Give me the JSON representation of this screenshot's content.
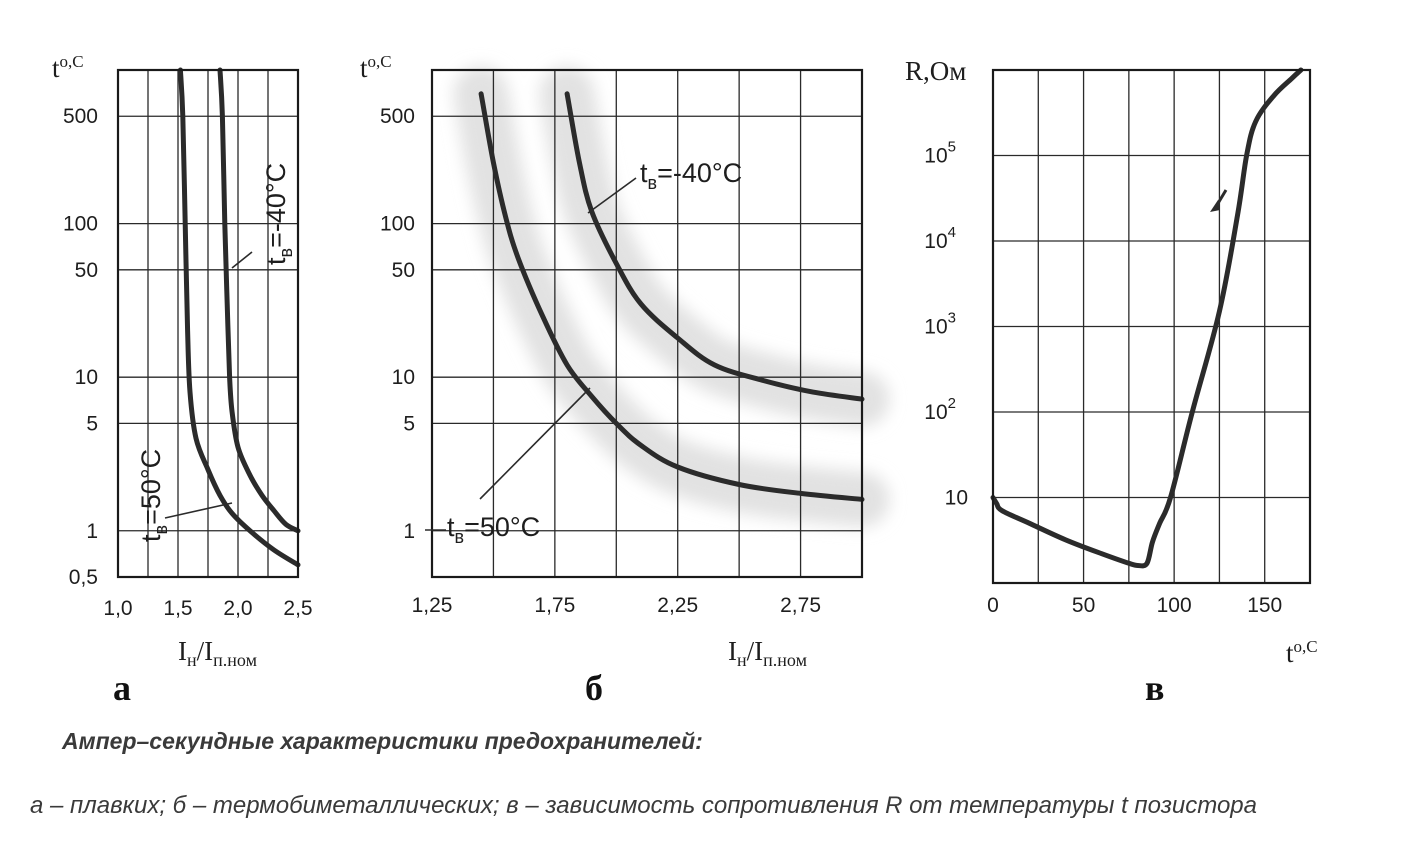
{
  "colors": {
    "ink": "#2b2b2b",
    "halo": "#e2e2e2"
  },
  "caption": {
    "title": "Ампер–секундные характеристики предохранителей:",
    "body": "а – плавких; б – термобиметаллических; в – зависимость сопротивления R от температуры t позистора"
  },
  "chart_data": [
    {
      "id": "a",
      "type": "line",
      "panel_letter": "а",
      "ylabel_base": "t",
      "ylabel_rest": "o,C",
      "xlabel_main": "I",
      "xlabel_sub1": "н",
      "xlabel_mid": "/I",
      "xlabel_sub2": "п.ном",
      "y_scale": "log",
      "xlim": [
        1.0,
        2.5
      ],
      "ylim": [
        0.5,
        1000
      ],
      "x_ticks": [
        1.0,
        1.5,
        2.0,
        2.5
      ],
      "x_tick_labels": [
        "1,0",
        "1,5",
        "2,0",
        "2,5"
      ],
      "y_ticks": [
        0.5,
        1,
        5,
        10,
        50,
        100,
        500
      ],
      "y_tick_labels": [
        "0,5",
        "1",
        "5",
        "10",
        "50",
        "100",
        "500"
      ],
      "grid": true,
      "series": [
        {
          "name": "tв=50°C",
          "label_base": "t",
          "label_sub": "в",
          "label_rest": "=50°C",
          "x": [
            1.52,
            1.54,
            1.56,
            1.58,
            1.6,
            1.65,
            1.75,
            1.85,
            1.95,
            2.1,
            2.3,
            2.5
          ],
          "y": [
            1000,
            500,
            100,
            20,
            8,
            4,
            2.5,
            1.7,
            1.3,
            1.0,
            0.75,
            0.6
          ]
        },
        {
          "name": "tв=-40°C",
          "label_base": "t",
          "label_sub": "в",
          "label_rest": "=-40°C",
          "x": [
            1.85,
            1.87,
            1.89,
            1.91,
            1.93,
            1.95,
            2.0,
            2.1,
            2.2,
            2.3,
            2.4,
            2.5
          ],
          "y": [
            1000,
            500,
            100,
            30,
            10,
            6,
            3.5,
            2.3,
            1.7,
            1.35,
            1.1,
            1.0
          ]
        }
      ]
    },
    {
      "id": "b",
      "type": "line",
      "panel_letter": "б",
      "ylabel_base": "t",
      "ylabel_rest": "o,C",
      "xlabel_main": "I",
      "xlabel_sub1": "н",
      "xlabel_mid": "/I",
      "xlabel_sub2": "п.ном",
      "y_scale": "log",
      "xlim": [
        1.25,
        3.0
      ],
      "ylim": [
        0.5,
        1000
      ],
      "x_ticks": [
        1.25,
        1.75,
        2.25,
        2.75
      ],
      "x_tick_labels": [
        "1,25",
        "1,75",
        "2,25",
        "2,75"
      ],
      "y_ticks": [
        1,
        5,
        10,
        50,
        100,
        500
      ],
      "y_tick_labels": [
        "1",
        "5",
        "10",
        "50",
        "100",
        "500"
      ],
      "grid": true,
      "series": [
        {
          "name": "tв=50°C",
          "label_base": "t",
          "label_sub": "в",
          "label_rest": "=50°C",
          "x": [
            1.45,
            1.5,
            1.55,
            1.6,
            1.7,
            1.8,
            1.9,
            2.0,
            2.1,
            2.25,
            2.5,
            2.75,
            3.0
          ],
          "y": [
            700,
            250,
            110,
            60,
            25,
            12,
            7.5,
            5,
            3.6,
            2.6,
            2.0,
            1.75,
            1.6
          ]
        },
        {
          "name": "tв=-40°C",
          "label_base": "t",
          "label_sub": "в",
          "label_rest": "=-40°C",
          "x": [
            1.8,
            1.85,
            1.9,
            2.0,
            2.1,
            2.25,
            2.4,
            2.6,
            2.8,
            3.0
          ],
          "y": [
            700,
            250,
            120,
            55,
            30,
            18,
            12,
            9.5,
            8.0,
            7.2
          ]
        }
      ]
    },
    {
      "id": "v",
      "type": "line",
      "panel_letter": "в",
      "ylabel_base": "R,Ом",
      "xlabel_main": "t",
      "xlabel_rest": "o,C",
      "y_scale": "log",
      "xlim": [
        0,
        175
      ],
      "ylim": [
        1,
        1000000
      ],
      "x_ticks": [
        0,
        50,
        100,
        150
      ],
      "x_tick_labels": [
        "0",
        "50",
        "100",
        "150"
      ],
      "y_ticks": [
        10,
        100,
        1000,
        10000,
        100000
      ],
      "y_tick_labels": [
        "10",
        "10",
        "10",
        "10",
        "10"
      ],
      "y_tick_exponents": [
        "",
        "2",
        "3",
        "4",
        "5"
      ],
      "grid": true,
      "series": [
        {
          "name": "R(t)",
          "x": [
            0,
            2,
            5,
            20,
            40,
            60,
            75,
            80,
            85,
            88,
            92,
            98,
            110,
            125,
            135,
            140,
            145,
            155,
            165,
            170
          ],
          "y": [
            10,
            8.5,
            7,
            5,
            3.2,
            2.2,
            1.7,
            1.6,
            1.7,
            3,
            5,
            10,
            100,
            1500,
            20000,
            100000,
            250000,
            500000,
            800000,
            1000000
          ]
        }
      ]
    }
  ]
}
